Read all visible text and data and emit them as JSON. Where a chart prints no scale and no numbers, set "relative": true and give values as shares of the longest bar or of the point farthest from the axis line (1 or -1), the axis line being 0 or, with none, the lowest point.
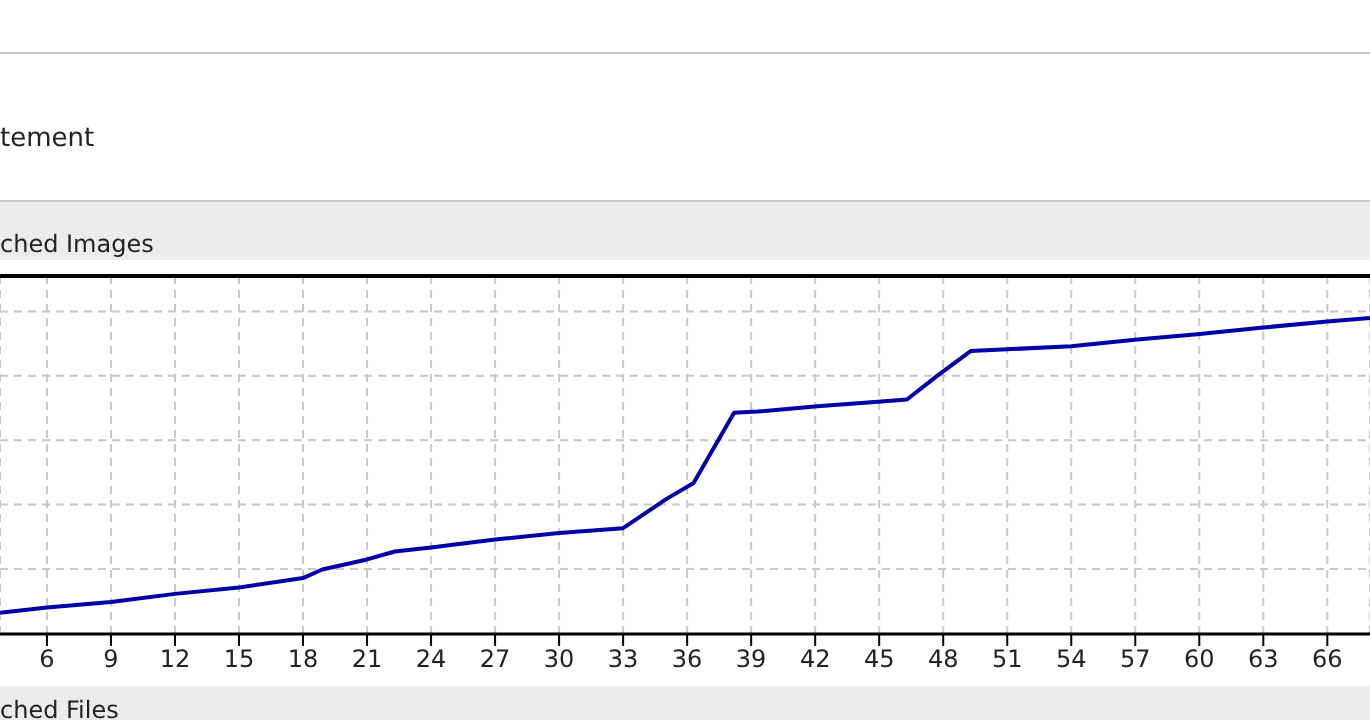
{
  "chart_data": {
    "type": "line",
    "relative": true,
    "annotations": [
      "tement",
      "ched Images",
      "ched Files"
    ],
    "x": [
      3.8,
      6,
      9,
      12,
      15,
      18,
      18.9,
      21,
      22.3,
      24,
      27,
      30,
      33,
      35,
      36.3,
      38.2,
      39.3,
      42.1,
      45.1,
      46.3,
      47.7,
      49.3,
      51,
      54,
      57.1,
      59.9,
      63,
      66,
      68
    ],
    "series": [
      {
        "color": "#0000aa",
        "values": [
          0.067,
          0.084,
          0.101,
          0.127,
          0.147,
          0.177,
          0.204,
          0.236,
          0.261,
          0.274,
          0.299,
          0.32,
          0.335,
          0.426,
          0.478,
          0.7,
          0.704,
          0.721,
          0.736,
          0.742,
          0.816,
          0.896,
          0.901,
          0.911,
          0.932,
          0.949,
          0.97,
          0.989,
          1.0
        ]
      }
    ],
    "xlim": [
      3.8,
      68
    ],
    "xticks": [
      6,
      9,
      12,
      15,
      18,
      21,
      24,
      27,
      30,
      33,
      36,
      39,
      42,
      45,
      48,
      51,
      54,
      57,
      60,
      63,
      66
    ],
    "grid": true,
    "marker": "none",
    "line_style": "solid"
  }
}
